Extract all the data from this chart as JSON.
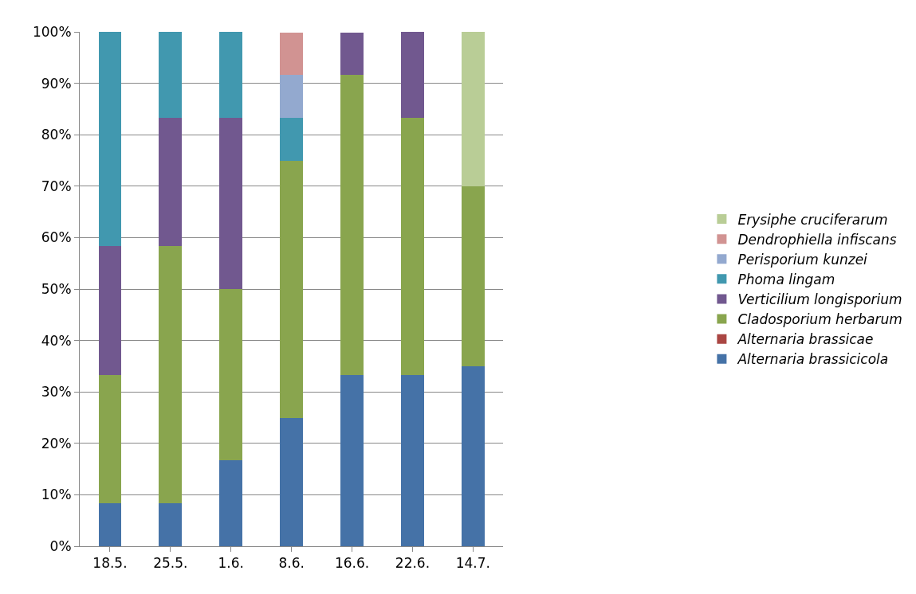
{
  "chart_data": {
    "type": "bar",
    "stacked": true,
    "categories": [
      "18.5.",
      "25.5.",
      "1.6.",
      "8.6.",
      "16.6.",
      "22.6.",
      "14.7."
    ],
    "series": [
      {
        "name": "Alternaria brassicicola",
        "color": "#4572a7",
        "values": [
          8.3,
          8.3,
          16.7,
          25,
          33.3,
          33.3,
          35
        ]
      },
      {
        "name": "Alternaria brassicae",
        "color": "#aa4643",
        "values": [
          0,
          0,
          0,
          0,
          0,
          0,
          0
        ]
      },
      {
        "name": "Cladosporium herbarum",
        "color": "#89a54e",
        "values": [
          25,
          50,
          33.3,
          50,
          58.3,
          50,
          35
        ]
      },
      {
        "name": "Verticilium longisporium",
        "color": "#71588f",
        "values": [
          25,
          25,
          33.3,
          0,
          8.3,
          16.7,
          0
        ]
      },
      {
        "name": "Phoma lingam",
        "color": "#4198af",
        "values": [
          41.7,
          16.7,
          16.7,
          8.3,
          0,
          0,
          0
        ]
      },
      {
        "name": "Perisporium kunzei",
        "color": "#93a9cf",
        "values": [
          0,
          0,
          0,
          8.3,
          0,
          0,
          0
        ]
      },
      {
        "name": "Dendrophiella infiscans",
        "color": "#d19392",
        "values": [
          0,
          0,
          0,
          8.3,
          0,
          0,
          0
        ]
      },
      {
        "name": "Erysiphe cruciferarum",
        "color": "#b9cd96",
        "values": [
          0,
          0,
          0,
          0,
          0,
          0,
          30
        ]
      }
    ],
    "ylim": [
      0,
      100
    ],
    "yticks": [
      {
        "value": 0,
        "label": "0%"
      },
      {
        "value": 10,
        "label": "10%"
      },
      {
        "value": 20,
        "label": "20%"
      },
      {
        "value": 30,
        "label": "30%"
      },
      {
        "value": 40,
        "label": "40%"
      },
      {
        "value": 50,
        "label": "50%"
      },
      {
        "value": 60,
        "label": "60%"
      },
      {
        "value": 70,
        "label": "70%"
      },
      {
        "value": 80,
        "label": "80%"
      },
      {
        "value": 90,
        "label": "90%"
      },
      {
        "value": 100,
        "label": "100%"
      }
    ],
    "grid": "y",
    "legend": "right"
  }
}
